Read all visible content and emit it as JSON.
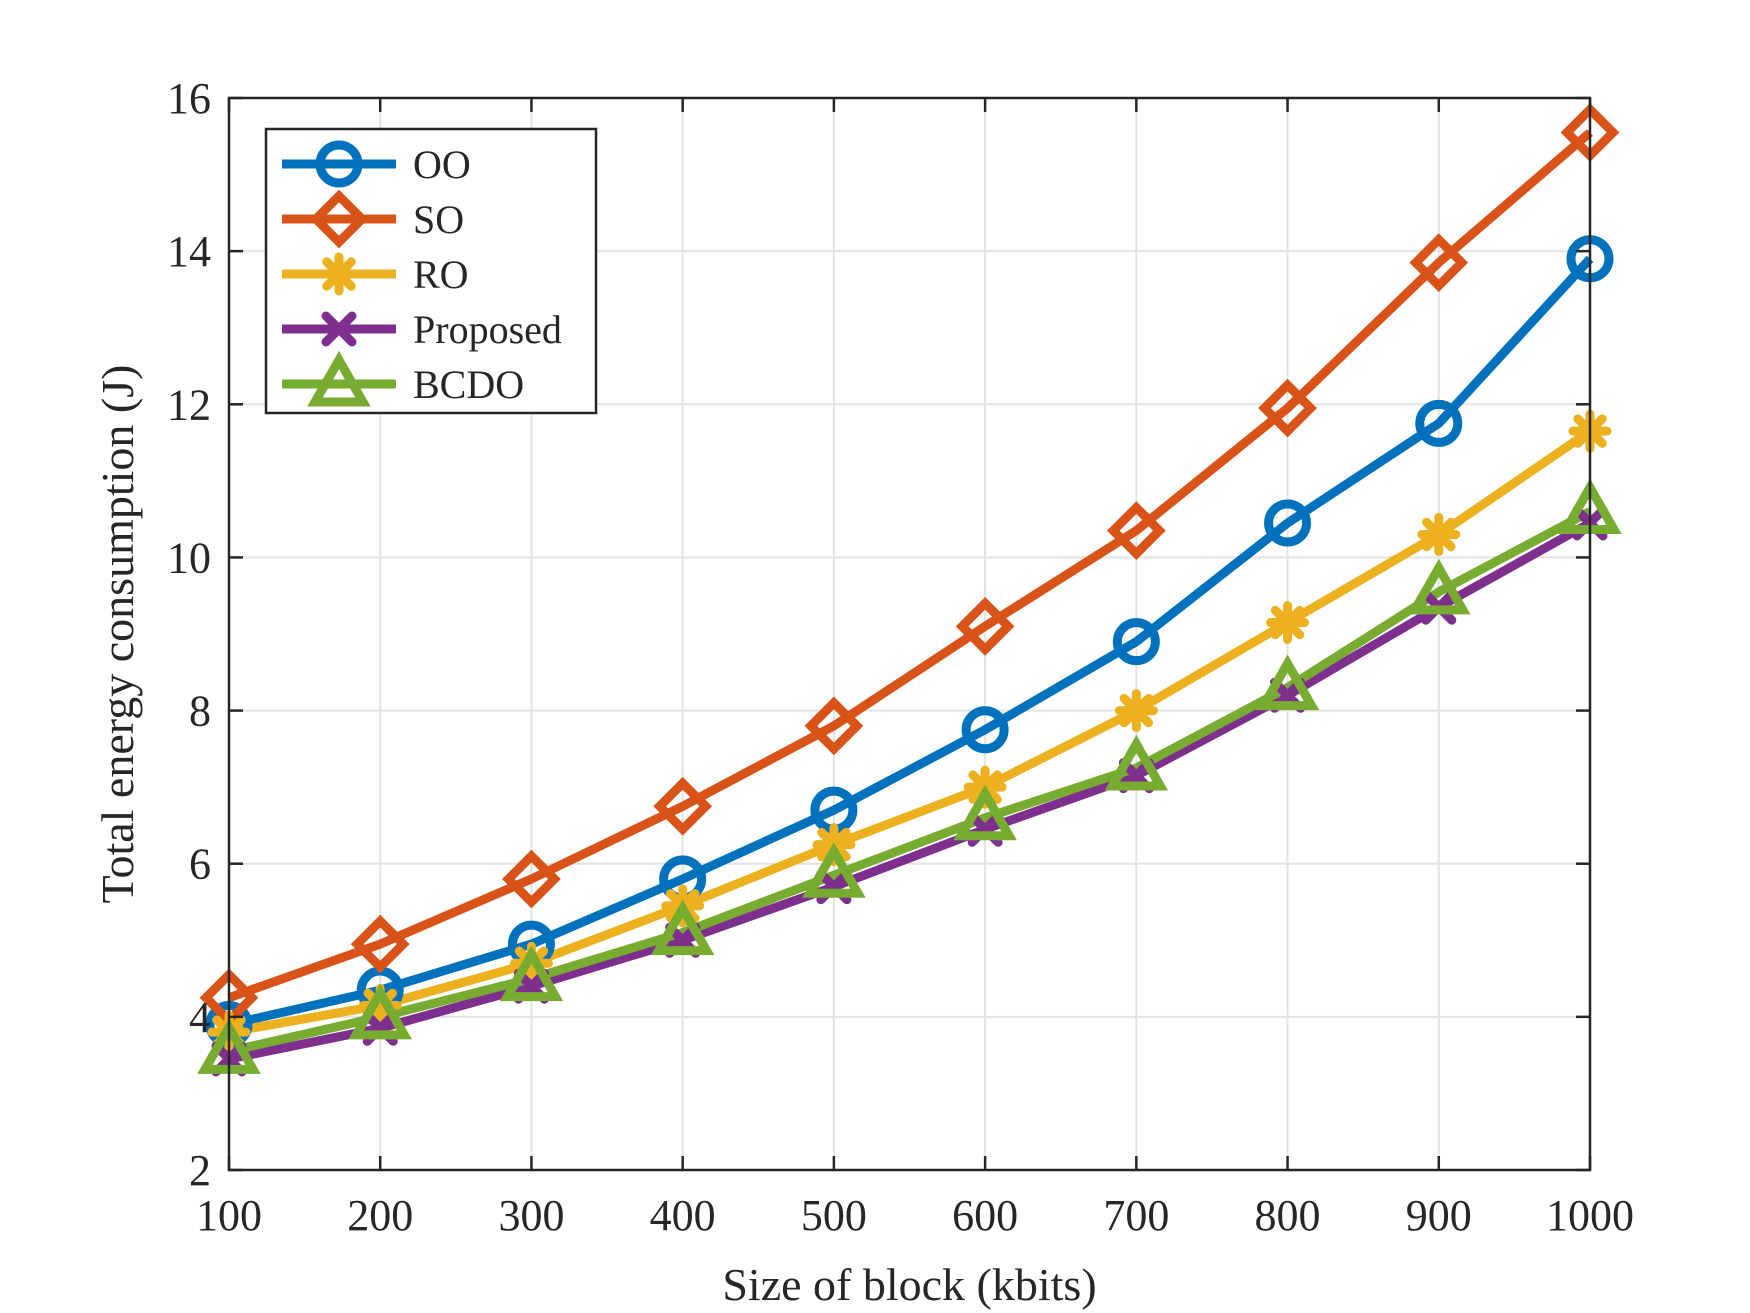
{
  "chart_data": {
    "type": "line",
    "title": "",
    "xlabel": "Size of block (kbits)",
    "ylabel": "Total energy consumption (J)",
    "x": [
      100,
      200,
      300,
      400,
      500,
      600,
      700,
      800,
      900,
      1000
    ],
    "xlim": [
      100,
      1000
    ],
    "ylim": [
      2,
      16
    ],
    "xticks": [
      100,
      200,
      300,
      400,
      500,
      600,
      700,
      800,
      900,
      1000
    ],
    "yticks": [
      2,
      4,
      6,
      8,
      10,
      12,
      14,
      16
    ],
    "grid": true,
    "legend_position": "top-left",
    "series": [
      {
        "name": "OO",
        "color": "#0072BD",
        "marker": "circle",
        "values": [
          3.9,
          4.35,
          4.95,
          5.8,
          6.7,
          7.75,
          8.9,
          10.45,
          11.75,
          13.9
        ]
      },
      {
        "name": "SO",
        "color": "#D95319",
        "marker": "diamond",
        "values": [
          4.25,
          4.95,
          5.8,
          6.75,
          7.8,
          9.1,
          10.35,
          11.95,
          13.85,
          15.55
        ]
      },
      {
        "name": "RO",
        "color": "#EDB120",
        "marker": "asterisk",
        "values": [
          3.8,
          4.15,
          4.7,
          5.45,
          6.25,
          7.0,
          8.0,
          9.15,
          10.3,
          11.65
        ]
      },
      {
        "name": "Proposed",
        "color": "#7E2F8E",
        "marker": "x",
        "values": [
          3.45,
          3.85,
          4.4,
          5.0,
          5.7,
          6.45,
          7.15,
          8.2,
          9.35,
          10.45
        ]
      },
      {
        "name": "BCDO",
        "color": "#77AC30",
        "marker": "triangle",
        "values": [
          3.55,
          4.0,
          4.5,
          5.1,
          5.85,
          6.6,
          7.25,
          8.3,
          9.55,
          10.6
        ]
      }
    ]
  }
}
